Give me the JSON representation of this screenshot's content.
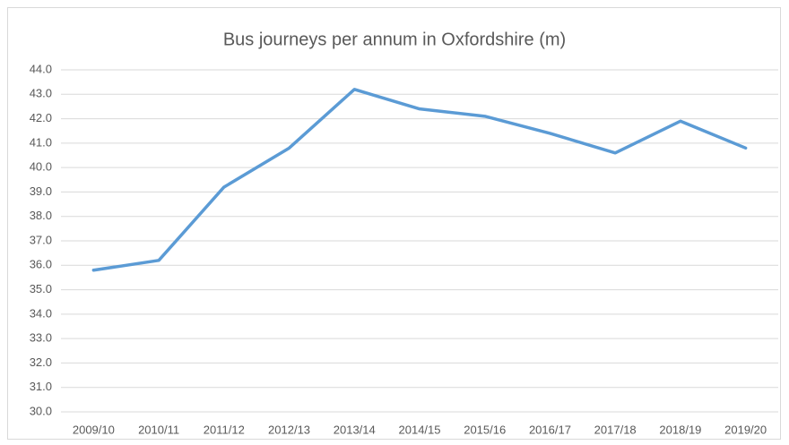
{
  "chart_data": {
    "type": "line",
    "title": "Bus journeys per annum in Oxfordshire (m)",
    "categories": [
      "2009/10",
      "2010/11",
      "2011/12",
      "2012/13",
      "2013/14",
      "2014/15",
      "2015/16",
      "2016/17",
      "2017/18",
      "2018/19",
      "2019/20"
    ],
    "values": [
      35.8,
      36.2,
      39.2,
      40.8,
      43.2,
      42.4,
      42.1,
      41.4,
      40.6,
      41.9,
      40.8
    ],
    "color": "#5b9bd5",
    "ylim": [
      30,
      44
    ],
    "yticks": [
      {
        "value": 30,
        "label": "30.0"
      },
      {
        "value": 31,
        "label": "31.0"
      },
      {
        "value": 32,
        "label": "32.0"
      },
      {
        "value": 33,
        "label": "33.0"
      },
      {
        "value": 34,
        "label": "34.0"
      },
      {
        "value": 35,
        "label": "35.0"
      },
      {
        "value": 36,
        "label": "36.0"
      },
      {
        "value": 37,
        "label": "37.0"
      },
      {
        "value": 38,
        "label": "38.0"
      },
      {
        "value": 39,
        "label": "39.0"
      },
      {
        "value": 40,
        "label": "40.0"
      },
      {
        "value": 41,
        "label": "41.0"
      },
      {
        "value": 42,
        "label": "42.0"
      },
      {
        "value": 43,
        "label": "43.0"
      },
      {
        "value": 44,
        "label": "44.0"
      }
    ],
    "grid": true
  }
}
